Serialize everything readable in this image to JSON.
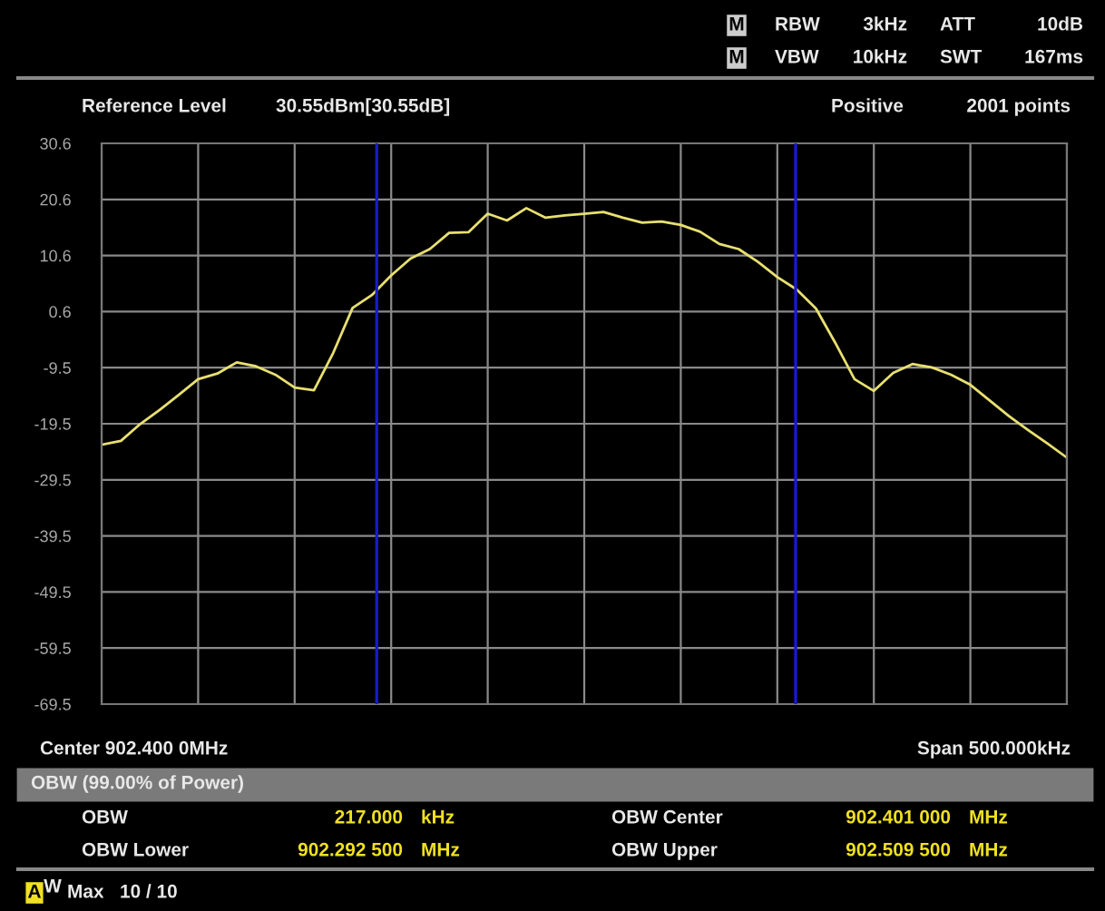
{
  "chart_data": {
    "type": "line",
    "categories": [
      null,
      null,
      null,
      null,
      null,
      null,
      null,
      null,
      null,
      null,
      null,
      null,
      null,
      null,
      null,
      null,
      null,
      null,
      null,
      null,
      null,
      null,
      null,
      null,
      null,
      null,
      null,
      null,
      null,
      null,
      null,
      null,
      null,
      null,
      null,
      null,
      null,
      null,
      null,
      null,
      null,
      null,
      null,
      null,
      null,
      null,
      null,
      null,
      null,
      null,
      null
    ],
    "series": [
      {
        "color": "#e8e070",
        "values": [
          -23.2,
          -22.5,
          -19.5,
          -17.0,
          -14.3,
          -11.5,
          -10.5,
          -8.5,
          -9.2,
          -10.7,
          -13.0,
          -13.5,
          -6.8,
          1.2,
          3.5,
          7.0,
          10.0,
          11.7,
          14.6,
          14.7,
          18.0,
          16.8,
          19.0,
          17.3,
          17.7,
          18.0,
          18.3,
          17.3,
          16.4,
          16.6,
          16.0,
          14.8,
          12.6,
          11.7,
          9.4,
          6.7,
          4.5,
          1.1,
          -5.0,
          -11.5,
          -13.6,
          -10.4,
          -8.8,
          -9.4,
          -10.7,
          -12.5,
          -15.3,
          -18.1,
          -20.6,
          -23.0,
          -25.5
        ]
      }
    ],
    "ylim": [
      -69.45,
      30.55
    ],
    "yticks": [
      {
        "value": 30.55,
        "label": "30.6"
      },
      {
        "value": 20.55,
        "label": "20.6"
      },
      {
        "value": 10.55,
        "label": "10.6"
      },
      {
        "value": 0.55,
        "label": "0.6"
      },
      {
        "value": -9.45,
        "label": "-9.5"
      },
      {
        "value": -19.45,
        "label": "-19.5"
      },
      {
        "value": -29.45,
        "label": "-29.5"
      },
      {
        "value": -39.45,
        "label": "-39.5"
      },
      {
        "value": -49.45,
        "label": "-49.5"
      },
      {
        "value": -59.45,
        "label": "-59.5"
      },
      {
        "value": -69.45,
        "label": "-69.5"
      }
    ],
    "tick_labels": "y",
    "grid": true,
    "annotations": [
      "RBW",
      "3kHz",
      "VBW",
      "10kHz",
      "ATT",
      "10dB",
      "SWT",
      "167ms",
      "Reference Level",
      "30.55dBm[30.55dB]",
      "Positive",
      "2001 points",
      "Center 902.400 0MHz",
      "Span 500.000kHz",
      "OBW (99.00% of Power)",
      "OBW",
      "217.000",
      "kHz",
      "OBW Center",
      "902.401 000",
      "MHz",
      "OBW Lower",
      "902.292 500",
      "MHz",
      "OBW Upper",
      "902.509 500",
      "MHz",
      "Max",
      "10 / 10",
      "M",
      "M",
      "A",
      "W"
    ]
  }
}
